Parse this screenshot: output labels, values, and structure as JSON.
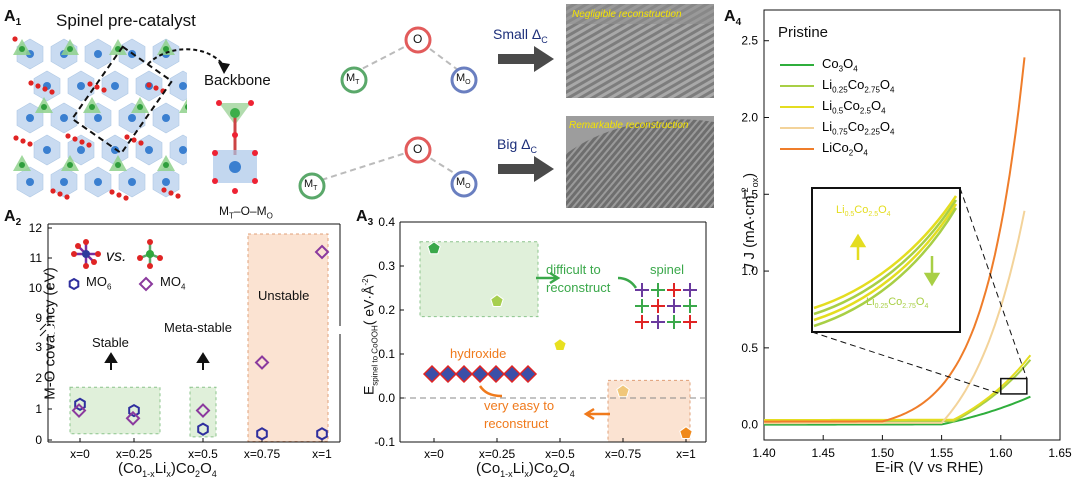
{
  "panelA1": {
    "letter": "A",
    "sub": "1",
    "title": "Spinel pre-catalyst",
    "backbone_label": "Backbone",
    "mt_o_mo": "M",
    "mt_sub": "T",
    "mo_sub": "O",
    "molecule_top": {
      "o": "O",
      "mt": "M",
      "mt_sub": "T",
      "mo": "M",
      "mo_sub": "O"
    },
    "molecule_bottom": {
      "o": "O",
      "mt": "M",
      "mt_sub": "T",
      "mo": "M",
      "mo_sub": "O"
    },
    "small_delta": "Small Δ",
    "big_delta": "Big Δ",
    "delta_sub": "C",
    "tem_top_caption": "Negligible reconstruction",
    "tem_bottom_caption": "Remarkable reconstruction"
  },
  "panelA2": {
    "letter": "A",
    "sub": "2",
    "ylabel": "M-O covalency (eV)",
    "vs": "vs.",
    "legend_mo6": "MO",
    "legend_mo6_sub": "6",
    "legend_mo4": "MO",
    "legend_mo4_sub": "4",
    "stable": "Stable",
    "metastable": "Meta-stable",
    "unstable": "Unstable",
    "xtitle_parts": [
      "(Co",
      "1-x",
      "Li",
      "x",
      ")Co",
      "2",
      "O",
      "4"
    ]
  },
  "panelA3": {
    "letter": "A",
    "sub": "3",
    "ylabel_main": "E",
    "ylabel_sub": "spinel to CoOOH",
    "ylabel_unit": "( eV·Å",
    "ylabel_exp": "-2",
    "ylabel_close": ")",
    "difficult": "difficult to",
    "difficult2": "reconstruct",
    "spinel": "spinel",
    "hydroxide": "hydroxide",
    "easy": "very easy to",
    "easy2": "reconstruct",
    "xtitle_parts": [
      "(Co",
      "1-x",
      "Li",
      "x",
      ")Co",
      "2",
      "O",
      "4"
    ]
  },
  "panelA4": {
    "letter": "A",
    "sub": "4",
    "title": "Pristine",
    "xlabel": "E-iR (V vs RHE)",
    "ylabel": "J (mA·cm",
    "ylabel_sup": "-2",
    "ylabel_sub": "ox",
    "inset_top": {
      "a": "Li",
      "a_sub": "0.5",
      "b": "Co",
      "b_sub": "2.5",
      "c": "O",
      "c_sub": "4"
    },
    "inset_bottom": {
      "a": "Li",
      "a_sub": "0.25",
      "b": "Co",
      "b_sub": "2.75",
      "c": "O",
      "c_sub": "4"
    }
  },
  "chart_data": [
    {
      "type": "scatter",
      "panel": "A2",
      "ylabel": "M-O covalency (eV)",
      "categories": [
        "x=0",
        "x=0.25",
        "x=0.5",
        "x=0.75",
        "x=1"
      ],
      "y_ticks_low": [
        "0",
        "1",
        "2",
        "3"
      ],
      "y_ticks_high": [
        "9",
        "10",
        "11",
        "12"
      ],
      "axis_break": true,
      "series": [
        {
          "name": "MO6",
          "color": "#2f2f9e",
          "values": [
            1.15,
            0.95,
            0.35,
            0.2,
            0.2
          ]
        },
        {
          "name": "MO4",
          "color": "#8b3a9e",
          "values": [
            0.95,
            0.7,
            0.95,
            2.5,
            11.2
          ]
        }
      ]
    },
    {
      "type": "scatter",
      "panel": "A3",
      "categories": [
        "x=0",
        "x=0.25",
        "x=0.5",
        "x=0.75",
        "x=1"
      ],
      "ylim": [
        -0.1,
        0.4
      ],
      "y_ticks": [
        "-0.1",
        "0.0",
        "0.1",
        "0.2",
        "0.3",
        "0.4"
      ],
      "values": [
        0.34,
        0.22,
        0.12,
        0.015,
        -0.08
      ],
      "colors": [
        "#3aa84a",
        "#a6cf4f",
        "#e8e020",
        "#f0c77a",
        "#f08a1c"
      ]
    },
    {
      "type": "line",
      "panel": "A4",
      "xlabel": "E-iR (V vs RHE)",
      "xlim": [
        1.4,
        1.65
      ],
      "ylim": [
        -0.1,
        2.7
      ],
      "x_ticks": [
        "1.40",
        "1.45",
        "1.50",
        "1.55",
        "1.60",
        "1.65"
      ],
      "y_ticks": [
        "0.0",
        "0.5",
        "1.0",
        "1.5",
        "2.0",
        "2.5"
      ],
      "series": [
        {
          "name": "Co3O4",
          "label_parts": [
            "Co",
            "3",
            "O",
            "4"
          ],
          "color": "#2fae3c",
          "onset": 1.55,
          "k": 9.5,
          "amp": 0.18,
          "end": 1.625,
          "base": 0.0
        },
        {
          "name": "Li0.25Co2.75O4",
          "label_parts": [
            "Li",
            "0.25",
            "Co",
            "2.75",
            "O",
            "4"
          ],
          "color": "#a8cf45",
          "onset": 1.56,
          "k": 13,
          "amp": 0.4,
          "end": 1.625,
          "base": 0.02
        },
        {
          "name": "Li0.5Co2.5O4",
          "label_parts": [
            "Li",
            "0.5",
            "Co",
            "2.5",
            "O",
            "4"
          ],
          "color": "#e4dd20",
          "onset": 1.56,
          "k": 14,
          "amp": 0.42,
          "end": 1.625,
          "base": 0.03
        },
        {
          "name": "Li0.75Co2.25O4",
          "label_parts": [
            "Li",
            "0.75",
            "Co",
            "2.25",
            "O",
            "4"
          ],
          "color": "#f3d39a",
          "onset": 1.55,
          "k": 22,
          "amp": 1.38,
          "end": 1.62,
          "base": 0.01
        },
        {
          "name": "LiCo2O4",
          "label_parts": [
            "LiCo",
            "2",
            "O",
            "4"
          ],
          "color": "#ef7d2a",
          "onset": 1.5,
          "k": 30,
          "amp": 2.52,
          "end": 1.622,
          "base": 0.02
        }
      ]
    }
  ]
}
